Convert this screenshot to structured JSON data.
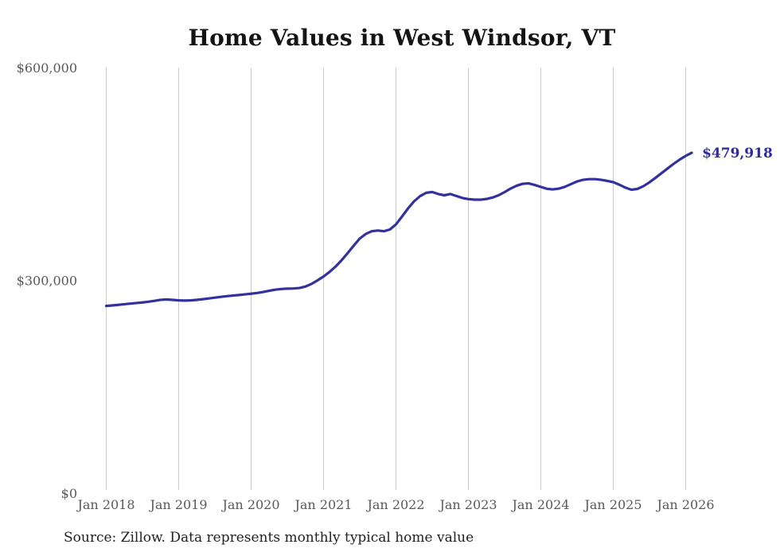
{
  "page": {
    "title": "Home Values in West Windsor, VT",
    "source_note": "Source: Zillow. Data represents monthly typical home value"
  },
  "style": {
    "line_color": "#34309e",
    "end_label_color": "#2f2b9d",
    "grid_color": "#cbcbcb",
    "axis_label_color": "#595959",
    "title_color": "#141414",
    "source_color": "#222222",
    "background": "#ffffff"
  },
  "chart_data": {
    "type": "line",
    "title": "Home Values in West Windsor, VT",
    "source_note": "Source: Zillow. Data represents monthly typical home value",
    "legend": "none",
    "grid": "vertical-only",
    "ylim": [
      0,
      600000
    ],
    "y_ticks": [
      {
        "value": 600000,
        "label": "$600,000"
      },
      {
        "value": 300000,
        "label": "$300,000"
      },
      {
        "value": 0,
        "label": "$0"
      }
    ],
    "x_tick_labels": [
      "Jan 2018",
      "Jan 2019",
      "Jan 2020",
      "Jan 2021",
      "Jan 2022",
      "Jan 2023",
      "Jan 2024",
      "Jan 2025",
      "Jan 2026"
    ],
    "end_label": "$479,918",
    "final_value": 479918,
    "series": [
      {
        "name": "Monthly typical home value",
        "x_start": "2018-01",
        "x_interval": "month",
        "x_end": "2026-02",
        "values": [
          264000,
          264700,
          265500,
          266400,
          267300,
          268100,
          268900,
          269900,
          271200,
          272600,
          273100,
          272500,
          271800,
          271500,
          271800,
          272500,
          273500,
          274600,
          275700,
          276800,
          277800,
          278600,
          279400,
          280300,
          281200,
          282300,
          283700,
          285400,
          286900,
          287900,
          288400,
          288600,
          289300,
          291300,
          295000,
          300000,
          305500,
          312000,
          319500,
          328500,
          338500,
          349000,
          359000,
          365500,
          369300,
          370300,
          369300,
          371800,
          379000,
          390000,
          401500,
          411500,
          418800,
          423500,
          424600,
          421800,
          420000,
          421800,
          419000,
          416200,
          414600,
          413800,
          413800,
          414800,
          416800,
          420000,
          424500,
          429500,
          433500,
          436200,
          436800,
          434500,
          431800,
          429200,
          428300,
          429400,
          432000,
          435800,
          439500,
          441800,
          442800,
          442800,
          441800,
          440300,
          438500,
          435000,
          430800,
          427800,
          429000,
          432800,
          438300,
          444600,
          451200,
          457800,
          464300,
          470300,
          475500,
          479918
        ]
      }
    ]
  }
}
